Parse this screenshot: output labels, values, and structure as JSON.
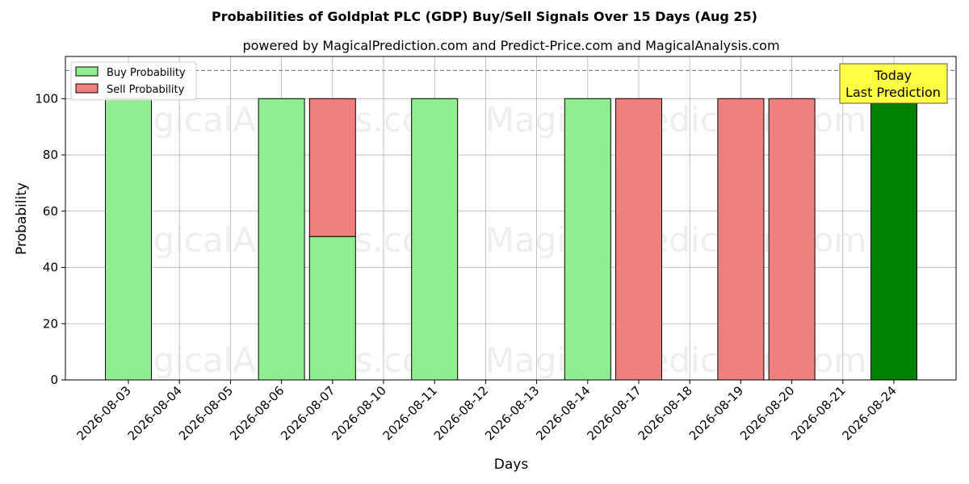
{
  "chart_data": {
    "type": "bar",
    "title": "Probabilities of Goldplat PLC (GDP) Buy/Sell Signals Over 15 Days (Aug 25)",
    "subtitle": "powered by MagicalPrediction.com and Predict-Price.com and MagicalAnalysis.com",
    "xlabel": "Days",
    "ylabel": "Probability",
    "ylim": [
      0,
      115
    ],
    "yticks": [
      0,
      20,
      40,
      60,
      80,
      100
    ],
    "grid": true,
    "legend_position": "top-left",
    "categories": [
      "2026-08-03",
      "2026-08-04",
      "2026-08-05",
      "2026-08-06",
      "2026-08-07",
      "2026-08-10",
      "2026-08-11",
      "2026-08-12",
      "2026-08-13",
      "2026-08-14",
      "2026-08-17",
      "2026-08-18",
      "2026-08-19",
      "2026-08-20",
      "2026-08-21",
      "2026-08-24"
    ],
    "series": [
      {
        "name": "Buy Probability",
        "color": "#90ee90",
        "values": [
          100,
          0,
          0,
          100,
          51,
          0,
          100,
          0,
          0,
          100,
          0,
          0,
          0,
          0,
          0,
          100
        ]
      },
      {
        "name": "Sell Probability",
        "color": "#f08080",
        "values": [
          0,
          0,
          0,
          0,
          49,
          0,
          0,
          0,
          0,
          0,
          100,
          0,
          100,
          100,
          0,
          0
        ]
      }
    ],
    "today_bar": {
      "category": "2026-08-24",
      "value": 100,
      "color": "#008000"
    },
    "reference_line": {
      "value": 110,
      "color": "#808080",
      "style": "dashed"
    },
    "annotation": {
      "lines": [
        "Today",
        "Last Prediction"
      ],
      "background": "#ffff44"
    },
    "watermarks": [
      "MagicalAnalysis.com",
      "MagicalPrediction.com"
    ]
  }
}
